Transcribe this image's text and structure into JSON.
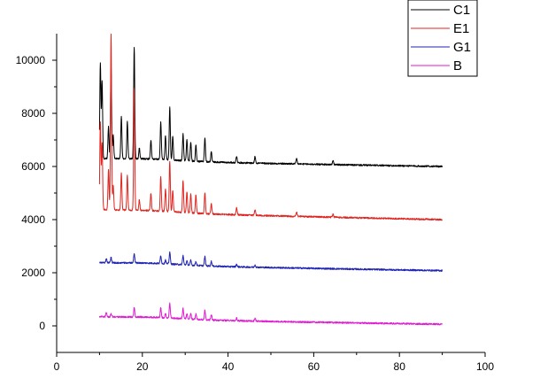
{
  "chart_data": {
    "type": "line",
    "title": "",
    "xlabel": "",
    "ylabel": "",
    "xlim": [
      0,
      100
    ],
    "ylim": [
      -1000,
      11000
    ],
    "x_ticks": [
      "0",
      "20",
      "40",
      "60",
      "80",
      "100"
    ],
    "y_ticks": [
      "0",
      "2000",
      "4000",
      "6000",
      "8000",
      "10000"
    ],
    "grid": false,
    "legend_position": "top-right",
    "series": [
      {
        "name": "C1",
        "color": "#000000",
        "baseline": [
          6300,
          6000
        ],
        "peaks": [
          [
            10.2,
            3600
          ],
          [
            10.6,
            2900
          ],
          [
            12.1,
            1200
          ],
          [
            12.7,
            3400
          ],
          [
            13.2,
            900
          ],
          [
            15.1,
            1600
          ],
          [
            16.5,
            1400
          ],
          [
            18.1,
            4200
          ],
          [
            19.3,
            400
          ],
          [
            22.0,
            700
          ],
          [
            24.3,
            1400
          ],
          [
            25.4,
            900
          ],
          [
            26.4,
            2000
          ],
          [
            27.1,
            900
          ],
          [
            29.5,
            1000
          ],
          [
            30.4,
            800
          ],
          [
            31.3,
            700
          ],
          [
            32.5,
            600
          ],
          [
            34.6,
            900
          ],
          [
            36.1,
            400
          ],
          [
            42.0,
            250
          ],
          [
            46.3,
            250
          ],
          [
            56.0,
            200
          ],
          [
            64.5,
            150
          ]
        ]
      },
      {
        "name": "E1",
        "color": "#e0241f",
        "baseline": [
          4380,
          4000
        ],
        "peaks": [
          [
            10.2,
            3300
          ],
          [
            10.6,
            2500
          ],
          [
            12.1,
            1500
          ],
          [
            12.7,
            6600
          ],
          [
            13.2,
            900
          ],
          [
            15.1,
            1400
          ],
          [
            16.5,
            1300
          ],
          [
            18.1,
            4600
          ],
          [
            19.3,
            400
          ],
          [
            22.0,
            650
          ],
          [
            24.3,
            1300
          ],
          [
            25.4,
            850
          ],
          [
            26.4,
            1900
          ],
          [
            27.1,
            800
          ],
          [
            29.5,
            1200
          ],
          [
            30.4,
            800
          ],
          [
            31.3,
            700
          ],
          [
            32.5,
            700
          ],
          [
            34.6,
            800
          ],
          [
            36.1,
            400
          ],
          [
            42.0,
            250
          ],
          [
            46.3,
            200
          ],
          [
            56.0,
            150
          ],
          [
            64.5,
            120
          ]
        ]
      },
      {
        "name": "G1",
        "color": "#1f23b4",
        "baseline": [
          2380,
          2080
        ],
        "peaks": [
          [
            11.6,
            150
          ],
          [
            12.7,
            200
          ],
          [
            18.1,
            350
          ],
          [
            24.3,
            300
          ],
          [
            25.4,
            150
          ],
          [
            26.4,
            450
          ],
          [
            29.5,
            350
          ],
          [
            30.4,
            150
          ],
          [
            31.3,
            180
          ],
          [
            32.5,
            150
          ],
          [
            34.6,
            350
          ],
          [
            36.1,
            180
          ],
          [
            42.0,
            100
          ],
          [
            46.3,
            90
          ]
        ]
      },
      {
        "name": "B",
        "color": "#e01bd3",
        "baseline": [
          340,
          60
        ],
        "peaks": [
          [
            11.6,
            150
          ],
          [
            12.7,
            120
          ],
          [
            18.1,
            350
          ],
          [
            24.3,
            350
          ],
          [
            25.4,
            150
          ],
          [
            26.4,
            550
          ],
          [
            29.5,
            400
          ],
          [
            30.4,
            180
          ],
          [
            31.3,
            200
          ],
          [
            32.5,
            200
          ],
          [
            34.6,
            350
          ],
          [
            36.1,
            200
          ],
          [
            42.0,
            100
          ],
          [
            46.3,
            90
          ]
        ]
      }
    ],
    "x_range": [
      10,
      90
    ]
  }
}
